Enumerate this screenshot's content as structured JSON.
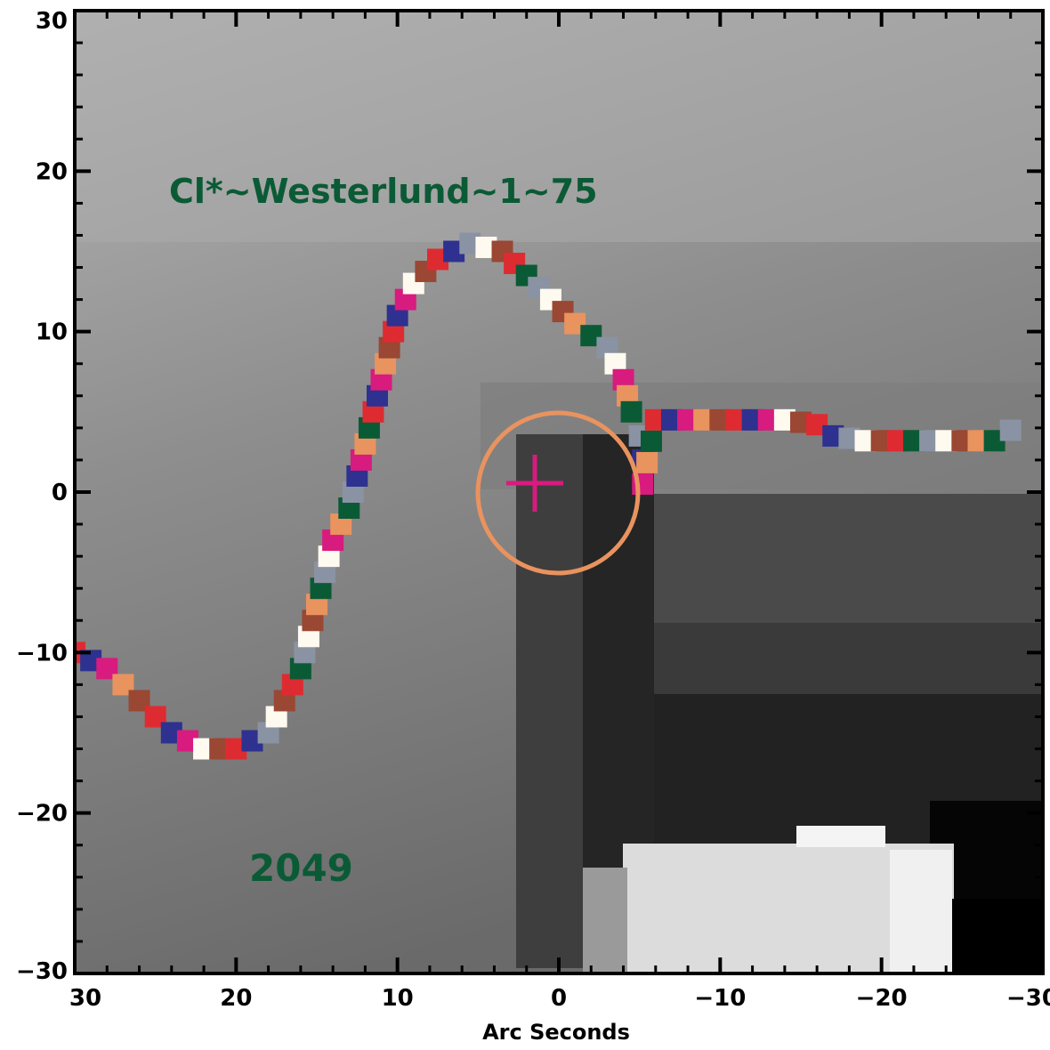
{
  "chart_data": {
    "type": "scatter",
    "title": "",
    "xlabel": "Arc Seconds",
    "ylabel": "",
    "xlim": [
      30,
      -30
    ],
    "ylim": [
      -30,
      30
    ],
    "x_ticks": [
      30,
      20,
      10,
      0,
      -10,
      -20,
      -30
    ],
    "y_ticks": [
      30,
      20,
      10,
      0,
      -10,
      -20,
      -30
    ],
    "x_tick_labels": [
      "30",
      "20",
      "10",
      "0",
      "−10",
      "−20",
      "−30"
    ],
    "y_tick_labels": [
      "30",
      "20",
      "10",
      "0",
      "−10",
      "−20",
      "−30"
    ],
    "background": "grayscale image",
    "annotations": [
      {
        "text": "Cl*~Westerlund~1~75",
        "x": 19.5,
        "y": 19.0,
        "color": "#0b5a36"
      },
      {
        "text": "2049",
        "x": 15.0,
        "y": -23.0,
        "color": "#0b5a36"
      }
    ],
    "target": {
      "marker": "cross",
      "x": 1.2,
      "y": 0.7,
      "color": "#d81b7e"
    },
    "aperture": {
      "marker": "circle",
      "x": -0.2,
      "y": 0.0,
      "radius_arcsec": 5.1,
      "color": "#e9935f"
    },
    "track": {
      "points": [
        [
          30,
          -10
        ],
        [
          28,
          -11
        ],
        [
          27,
          -12
        ],
        [
          26,
          -13
        ],
        [
          25,
          -14
        ],
        [
          24,
          -15
        ],
        [
          22,
          -16
        ],
        [
          20,
          -16
        ],
        [
          18,
          -15
        ],
        [
          17,
          -13
        ],
        [
          16,
          -11
        ],
        [
          15.5,
          -9
        ],
        [
          15,
          -7
        ],
        [
          14.5,
          -5
        ],
        [
          14,
          -3
        ],
        [
          13,
          -1
        ],
        [
          12.5,
          1
        ],
        [
          12,
          3
        ],
        [
          11.5,
          5
        ],
        [
          11,
          7
        ],
        [
          10.5,
          9
        ],
        [
          10,
          11
        ],
        [
          9,
          13
        ],
        [
          7.5,
          14.5
        ],
        [
          5.5,
          15.5
        ],
        [
          3.5,
          15
        ],
        [
          2,
          13.5
        ],
        [
          0.5,
          12
        ],
        [
          -1,
          10.5
        ],
        [
          -3,
          9
        ],
        [
          -4,
          7
        ],
        [
          -4.5,
          5
        ],
        [
          -5,
          3.5
        ],
        [
          -5.2,
          2
        ],
        [
          -5.2,
          0.5
        ],
        [
          -6,
          4.5
        ],
        [
          -8,
          4.5
        ],
        [
          -10,
          4.5
        ],
        [
          -12,
          4.5
        ],
        [
          -14,
          4.5
        ],
        [
          -16,
          4.2
        ],
        [
          -17,
          3.5
        ],
        [
          -19,
          3.2
        ],
        [
          -21,
          3.2
        ],
        [
          -23,
          3.2
        ],
        [
          -25,
          3.2
        ],
        [
          -27,
          3.2
        ],
        [
          -29,
          4.5
        ]
      ],
      "colors": [
        "#de2b31",
        "#e9935f",
        "#fffaf0",
        "#2e3190",
        "#0b5a36",
        "#9a4733",
        "#d81b7e",
        "#8a93a3"
      ]
    },
    "grid": false,
    "legend": "none"
  }
}
